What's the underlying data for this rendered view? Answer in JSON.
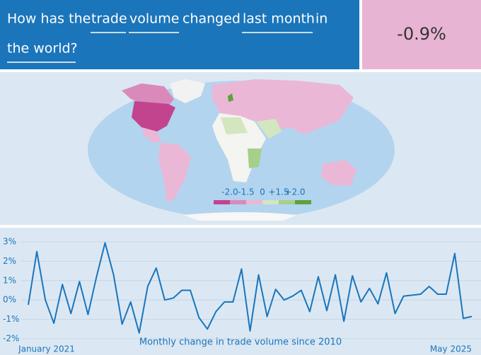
{
  "header": {
    "question": [
      "How has the",
      "trade",
      "volume",
      "changed",
      "last month",
      "in",
      "the world?"
    ],
    "answer": "-0.9%"
  },
  "map": {
    "legend": {
      "ticks": [
        {
          "value": -2,
          "label": "-2.0"
        },
        {
          "value": -1.5,
          "label": "-1.5"
        },
        0,
        {
          "value": 1.5,
          "label": "+1.5"
        },
        {
          "value": 2,
          "label": "+2.0"
        }
      ],
      "colors": [
        "#c2448f",
        "#d98abb",
        "#ebb7d6",
        "#d3e6c0",
        "#a6cf8a",
        "#5ea23c"
      ]
    }
  },
  "chart_data": {
    "type": "line",
    "title": "Monthly change in trade volume since 2010",
    "categories": [
      "January 2021",
      null,
      null,
      null,
      null,
      null,
      null,
      null,
      null,
      null,
      null,
      null,
      null,
      null,
      null,
      null,
      null,
      null,
      null,
      null,
      null,
      null,
      null,
      null,
      null,
      null,
      null,
      null,
      null,
      null,
      null,
      null,
      null,
      null,
      null,
      null,
      null,
      null,
      null,
      null,
      null,
      null,
      null,
      null,
      null,
      null,
      null,
      null,
      null,
      null,
      null,
      null,
      "May 2025"
    ],
    "values": [
      -0.25,
      2.5,
      0.0,
      -1.2,
      0.8,
      -0.7,
      0.95,
      -0.75,
      1.2,
      2.95,
      1.3,
      -1.25,
      -0.1,
      -1.7,
      0.7,
      1.65,
      0.0,
      0.1,
      0.5,
      0.5,
      -0.9,
      -1.5,
      -0.6,
      -0.1,
      -0.1,
      1.6,
      -1.6,
      1.3,
      -0.85,
      0.55,
      0.0,
      0.2,
      0.5,
      -0.6,
      1.2,
      -0.55,
      1.3,
      -1.1,
      1.25,
      -0.1,
      0.6,
      -0.2,
      1.4,
      -0.7,
      0.2,
      0.25,
      0.3,
      0.7,
      0.3,
      0.3,
      2.4,
      -0.95,
      -0.85
    ],
    "color": "#1b75bb",
    "ylim": [
      -2.3,
      3.6
    ],
    "yticks": [
      {
        "value": -2,
        "label": "-2%"
      },
      {
        "value": -1,
        "label": "-1%"
      },
      {
        "value": 0,
        "label": "0%"
      },
      {
        "value": 1,
        "label": "1%"
      },
      {
        "value": 2,
        "label": "2%"
      },
      {
        "value": 3,
        "label": "3%"
      }
    ],
    "grid": true
  }
}
